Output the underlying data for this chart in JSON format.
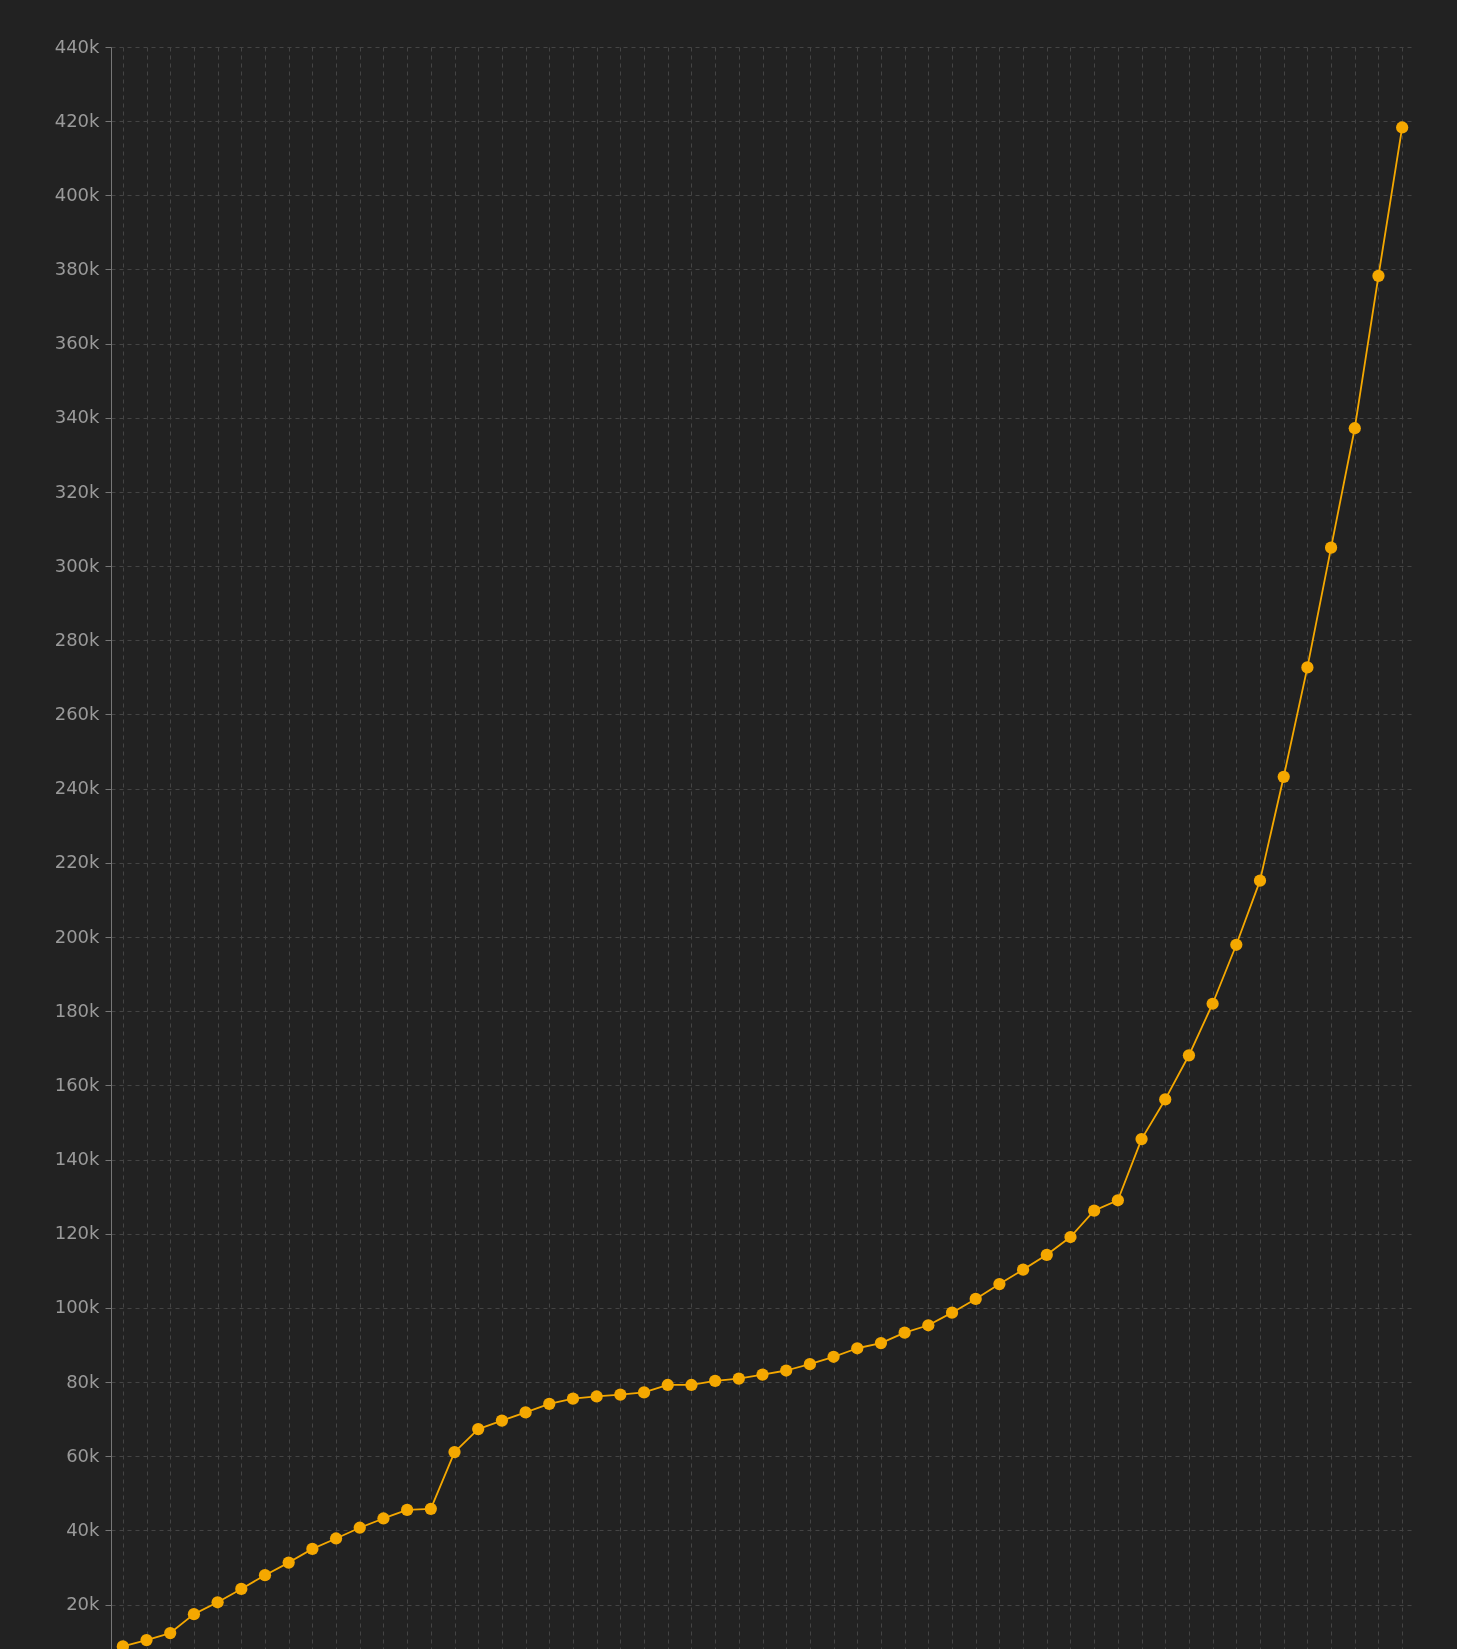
{
  "chart_data": {
    "type": "line",
    "categories": [
      null,
      null,
      null,
      null,
      null,
      null,
      null,
      null,
      null,
      null,
      null,
      null,
      null,
      null,
      null,
      null,
      null,
      null,
      null,
      null,
      null,
      null,
      null,
      null,
      null,
      null,
      null,
      null,
      null,
      null,
      null,
      null,
      null,
      null,
      null,
      null,
      null,
      null,
      null,
      null,
      null,
      null,
      null,
      null,
      null,
      null,
      null,
      null,
      null,
      null,
      null,
      null,
      null,
      null,
      null
    ],
    "series": [
      {
        "color": "#f5a800",
        "values": [
          8700,
          10400,
          12300,
          17400,
          20600,
          24200,
          27900,
          31300,
          35000,
          37800,
          40700,
          43200,
          45500,
          45800,
          61100,
          67300,
          69600,
          71800,
          74100,
          75500,
          76100,
          76600,
          77200,
          79200,
          79200,
          80300,
          80900,
          82000,
          83100,
          84800,
          86800,
          89100,
          90500,
          93300,
          95300,
          98700,
          102400,
          106400,
          110300,
          114300,
          119100,
          126200,
          129000,
          145500,
          156200,
          168100,
          182000,
          197900,
          215200,
          243200,
          272700,
          305000,
          337200,
          378300,
          418300
        ]
      }
    ],
    "ylim": [
      8000,
      440000
    ],
    "yticks": [
      {
        "value": 20000,
        "label": "20k"
      },
      {
        "value": 40000,
        "label": "40k"
      },
      {
        "value": 60000,
        "label": "60k"
      },
      {
        "value": 80000,
        "label": "80k"
      },
      {
        "value": 100000,
        "label": "100k"
      },
      {
        "value": 120000,
        "label": "120k"
      },
      {
        "value": 140000,
        "label": "140k"
      },
      {
        "value": 160000,
        "label": "160k"
      },
      {
        "value": 180000,
        "label": "180k"
      },
      {
        "value": 200000,
        "label": "200k"
      },
      {
        "value": 220000,
        "label": "220k"
      },
      {
        "value": 240000,
        "label": "240k"
      },
      {
        "value": 260000,
        "label": "260k"
      },
      {
        "value": 280000,
        "label": "280k"
      },
      {
        "value": 300000,
        "label": "300k"
      },
      {
        "value": 320000,
        "label": "320k"
      },
      {
        "value": 340000,
        "label": "340k"
      },
      {
        "value": 360000,
        "label": "360k"
      },
      {
        "value": 380000,
        "label": "380k"
      },
      {
        "value": 400000,
        "label": "400k"
      },
      {
        "value": 420000,
        "label": "420k"
      },
      {
        "value": 440000,
        "label": "440k"
      }
    ],
    "grid": true,
    "marker": "circle",
    "line_style": "solid",
    "tick_labels": "y"
  }
}
